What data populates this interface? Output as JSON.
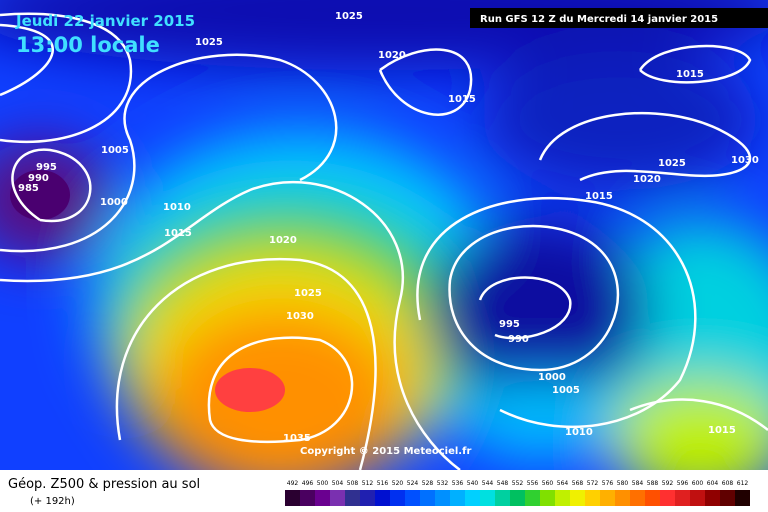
{
  "header": {
    "date": "Jeudi 22 janvier 2015",
    "time": "13:00 locale",
    "run": "Run GFS 12 Z du Mercredi 14 janvier 2015"
  },
  "isobar_labels": [
    "1025",
    "1025",
    "1020",
    "1015",
    "1015",
    "1005",
    "995",
    "990",
    "985",
    "1000",
    "1010",
    "1015",
    "1020",
    "1025",
    "1030",
    "1025",
    "1030",
    "1020",
    "1015",
    "995",
    "990",
    "1000",
    "1005",
    "1010",
    "1035",
    "1015"
  ],
  "copyright": "Copyright © 2015 Meteociel.fr",
  "legend": {
    "title": "Géop. Z500 & pression au sol",
    "subtitle": "(+ 192h)",
    "values": [
      492,
      496,
      500,
      504,
      508,
      512,
      516,
      520,
      524,
      528,
      532,
      536,
      540,
      544,
      548,
      552,
      556,
      560,
      564,
      568,
      572,
      576,
      580,
      584,
      588,
      592,
      596,
      600,
      604,
      608,
      612
    ],
    "colors": [
      "#2a0030",
      "#4a0060",
      "#6a0090",
      "#7a30b0",
      "#303090",
      "#2020b0",
      "#0010d0",
      "#0030f0",
      "#0050ff",
      "#0070ff",
      "#0090ff",
      "#00b0ff",
      "#00d0ff",
      "#00e0e0",
      "#00d0a0",
      "#00c060",
      "#30d030",
      "#80e000",
      "#c0f000",
      "#f0f000",
      "#ffd000",
      "#ffb000",
      "#ff9000",
      "#ff7000",
      "#ff5000",
      "#ff3030",
      "#e02020",
      "#c01010",
      "#900000",
      "#600000",
      "#200000"
    ]
  }
}
